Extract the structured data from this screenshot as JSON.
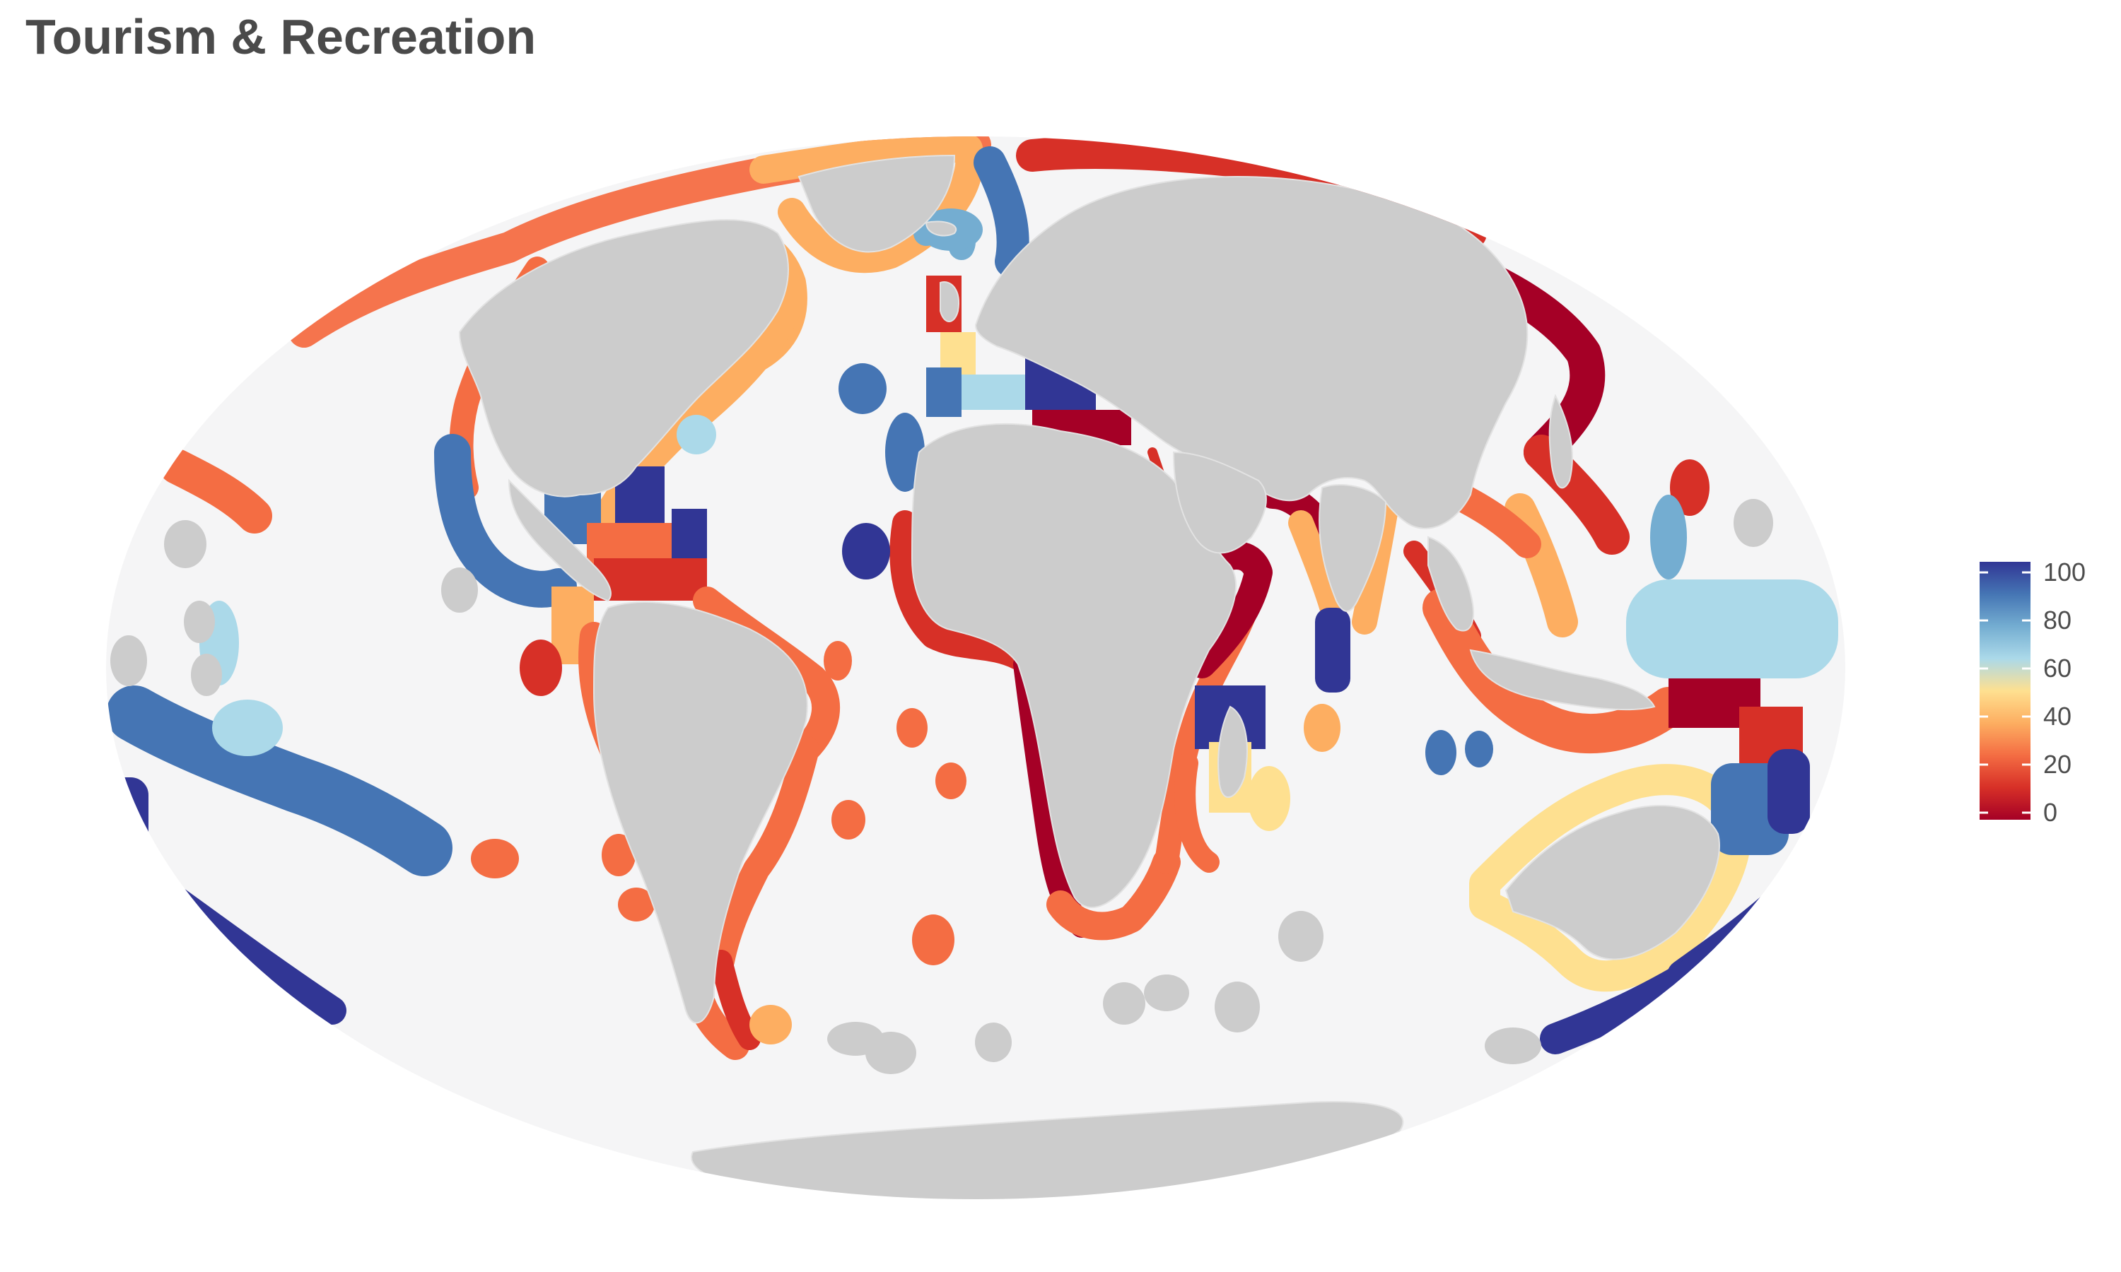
{
  "title": "Tourism & Recreation",
  "map": {
    "projection": "mollweide",
    "ocean_color": "#f5f5f6",
    "land_color": "#cccccc",
    "no_data_color": "#cccccc"
  },
  "legend": {
    "ticks": [
      "100",
      "80",
      "60",
      "40",
      "20",
      "0"
    ],
    "range": [
      0,
      100
    ],
    "colors": [
      "#a50026",
      "#d73027",
      "#f46d43",
      "#fdae61",
      "#fee090",
      "#abd9e9",
      "#74add1",
      "#4575b4",
      "#313695"
    ]
  }
}
